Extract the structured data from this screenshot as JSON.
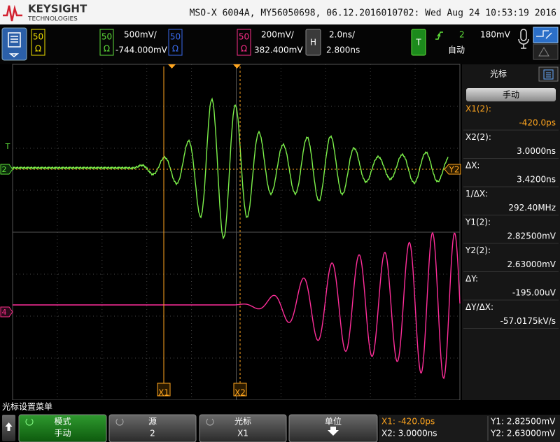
{
  "header": {
    "brand": "KEYSIGHT",
    "brand_sub": "TECHNOLOGIES",
    "title": "MSO-X 6004A, MY56050698, 06.12.2016010702: Wed Aug 24 10:53:19 2016"
  },
  "ch1": {
    "imp": "50",
    "ohm": "Ω"
  },
  "ch2": {
    "imp": "50",
    "ohm": "Ω",
    "scale": "500mV/",
    "offset": "-744.000mV"
  },
  "ch3": {
    "imp": "50",
    "ohm": "Ω"
  },
  "ch4": {
    "imp": "50",
    "ohm": "Ω",
    "scale": "200mV/",
    "offset": "382.400mV"
  },
  "horizontal": {
    "label": "H",
    "scale": "2.0ns/",
    "position": "2.800ns"
  },
  "trigger": {
    "label": "T",
    "source": "2",
    "level": "180mV",
    "mode": "自动"
  },
  "markers": {
    "trigger": "T",
    "ch2": "2",
    "ch4": "4",
    "x1": "X1",
    "x2": "X2",
    "y2": "Y2"
  },
  "cursor_panel": {
    "title": "光标",
    "mode": "手动",
    "readouts": [
      {
        "label": "X1(2):",
        "value": "-420.0ps"
      },
      {
        "label": "X2(2):",
        "value": "3.0000ns"
      },
      {
        "label": "ΔX:",
        "value": "3.4200ns"
      },
      {
        "label": "1/ΔX:",
        "value": "292.40MHz"
      },
      {
        "label": "Y1(2):",
        "value": "2.82500mV"
      },
      {
        "label": "Y2(2):",
        "value": "2.63000mV"
      },
      {
        "label": "ΔY:",
        "value": "-195.00uV"
      },
      {
        "label": "ΔY/ΔX:",
        "value": "-57.0175kV/s"
      }
    ]
  },
  "menu": {
    "title": "光标设置菜单",
    "softkeys": [
      {
        "label": "模式",
        "value": "手动"
      },
      {
        "label": "源",
        "value": "2"
      },
      {
        "label": "光标",
        "value": "X1"
      },
      {
        "label": "单位"
      }
    ]
  },
  "status": {
    "x1": "X1: -420.0ps",
    "x2": "X2: 3.0000ns",
    "y1": "Y1: 2.82500mV",
    "y2": "Y2: 2.63000mV"
  }
}
